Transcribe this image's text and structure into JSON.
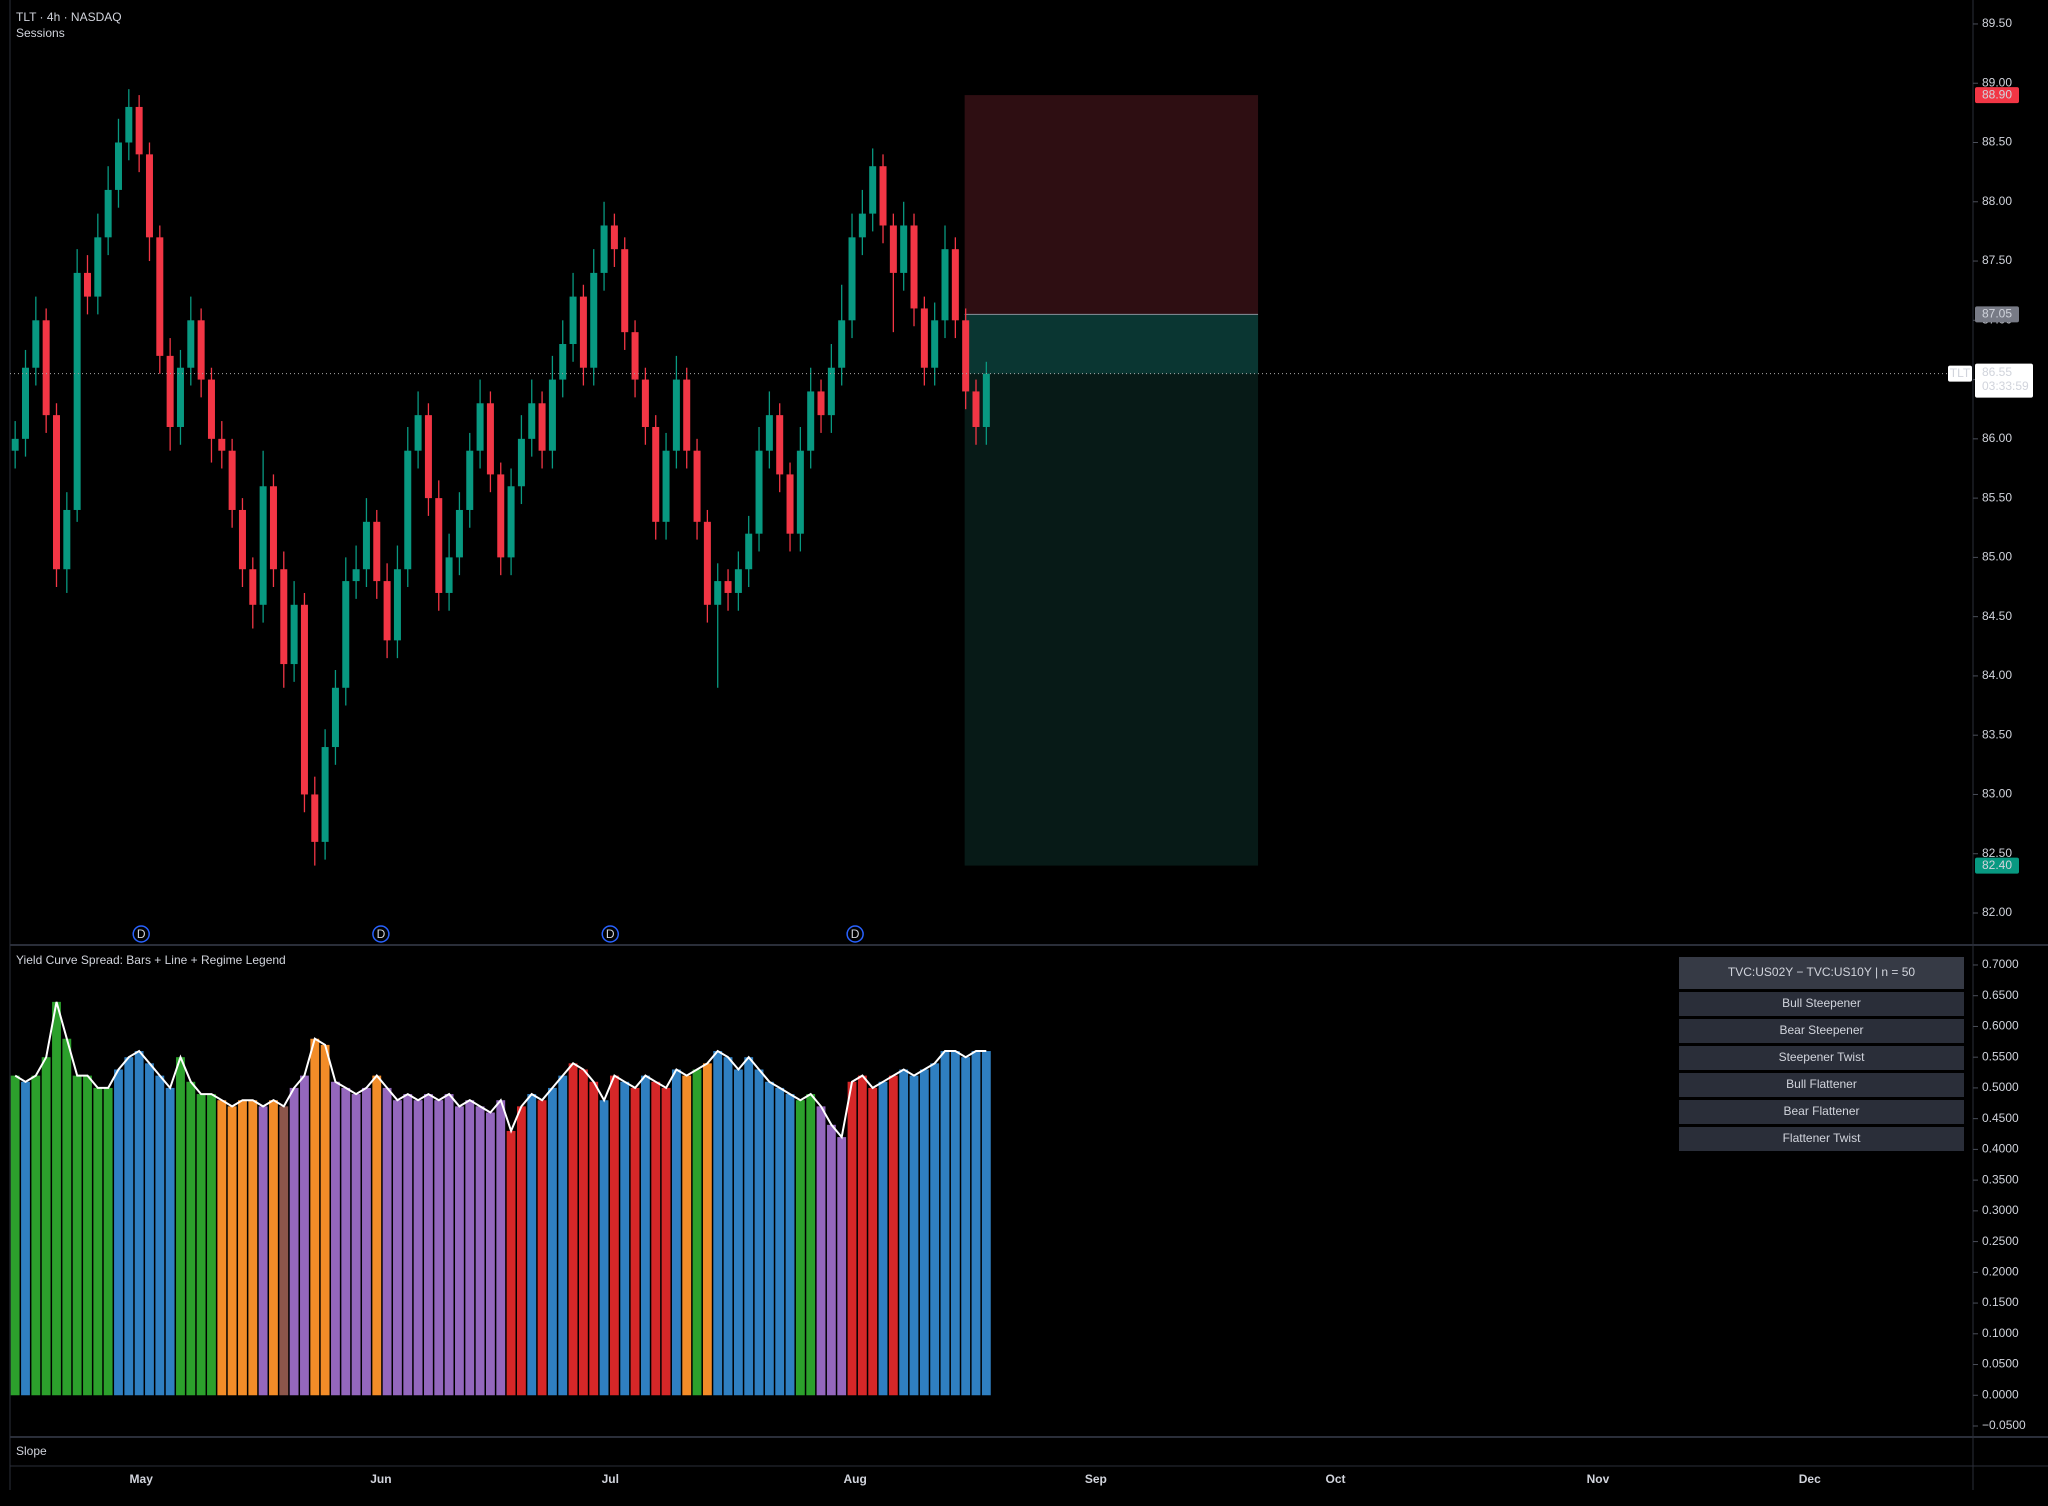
{
  "chart_data": [
    {
      "type": "candlestick",
      "title": "TLT · 4h · NASDAQ",
      "subtitle": "Sessions",
      "up_color": "#089981",
      "down_color": "#f23645",
      "candles": [
        [
          85.9,
          86.15,
          85.75,
          86.0
        ],
        [
          86.0,
          86.75,
          85.85,
          86.6
        ],
        [
          86.6,
          87.2,
          86.45,
          87.0
        ],
        [
          87.0,
          87.1,
          86.05,
          86.2
        ],
        [
          86.2,
          86.3,
          84.75,
          84.9
        ],
        [
          84.9,
          85.55,
          84.7,
          85.4
        ],
        [
          85.4,
          87.6,
          85.3,
          87.4
        ],
        [
          87.4,
          87.55,
          87.05,
          87.2
        ],
        [
          87.2,
          87.9,
          87.05,
          87.7
        ],
        [
          87.7,
          88.3,
          87.55,
          88.1
        ],
        [
          88.1,
          88.7,
          87.95,
          88.5
        ],
        [
          88.5,
          88.95,
          88.35,
          88.8
        ],
        [
          88.8,
          88.9,
          88.25,
          88.4
        ],
        [
          88.4,
          88.5,
          87.5,
          87.7
        ],
        [
          87.7,
          87.8,
          86.55,
          86.7
        ],
        [
          86.7,
          86.85,
          85.9,
          86.1
        ],
        [
          86.1,
          86.75,
          85.95,
          86.6
        ],
        [
          86.6,
          87.2,
          86.45,
          87.0
        ],
        [
          87.0,
          87.1,
          86.35,
          86.5
        ],
        [
          86.5,
          86.6,
          85.8,
          86.0
        ],
        [
          86.0,
          86.15,
          85.75,
          85.9
        ],
        [
          85.9,
          86.0,
          85.25,
          85.4
        ],
        [
          85.4,
          85.5,
          84.75,
          84.9
        ],
        [
          84.9,
          85.0,
          84.4,
          84.6
        ],
        [
          84.6,
          85.9,
          84.45,
          85.6
        ],
        [
          85.6,
          85.7,
          84.75,
          84.9
        ],
        [
          84.9,
          85.05,
          83.9,
          84.1
        ],
        [
          84.1,
          84.8,
          83.95,
          84.6
        ],
        [
          84.6,
          84.7,
          82.85,
          83.0
        ],
        [
          83.0,
          83.15,
          82.4,
          82.6
        ],
        [
          82.6,
          83.55,
          82.45,
          83.4
        ],
        [
          83.4,
          84.05,
          83.25,
          83.9
        ],
        [
          83.9,
          85.0,
          83.75,
          84.8
        ],
        [
          84.8,
          85.1,
          84.65,
          84.9
        ],
        [
          84.9,
          85.5,
          84.75,
          85.3
        ],
        [
          85.3,
          85.4,
          84.65,
          84.8
        ],
        [
          84.8,
          84.95,
          84.15,
          84.3
        ],
        [
          84.3,
          85.1,
          84.15,
          84.9
        ],
        [
          84.9,
          86.1,
          84.75,
          85.9
        ],
        [
          85.9,
          86.4,
          85.75,
          86.2
        ],
        [
          86.2,
          86.3,
          85.35,
          85.5
        ],
        [
          85.5,
          85.65,
          84.55,
          84.7
        ],
        [
          84.7,
          85.2,
          84.55,
          85.0
        ],
        [
          85.0,
          85.55,
          84.85,
          85.4
        ],
        [
          85.4,
          86.05,
          85.25,
          85.9
        ],
        [
          85.9,
          86.5,
          85.75,
          86.3
        ],
        [
          86.3,
          86.4,
          85.55,
          85.7
        ],
        [
          85.7,
          85.8,
          84.85,
          85.0
        ],
        [
          85.0,
          85.75,
          84.85,
          85.6
        ],
        [
          85.6,
          86.2,
          85.45,
          86.0
        ],
        [
          86.0,
          86.5,
          85.85,
          86.3
        ],
        [
          86.3,
          86.4,
          85.75,
          85.9
        ],
        [
          85.9,
          86.7,
          85.75,
          86.5
        ],
        [
          86.5,
          87.0,
          86.35,
          86.8
        ],
        [
          86.8,
          87.4,
          86.65,
          87.2
        ],
        [
          87.2,
          87.3,
          86.45,
          86.6
        ],
        [
          86.6,
          87.6,
          86.45,
          87.4
        ],
        [
          87.4,
          88.0,
          87.25,
          87.8
        ],
        [
          87.8,
          87.9,
          87.45,
          87.6
        ],
        [
          87.6,
          87.7,
          86.75,
          86.9
        ],
        [
          86.9,
          87.0,
          86.35,
          86.5
        ],
        [
          86.5,
          86.6,
          85.95,
          86.1
        ],
        [
          86.1,
          86.2,
          85.15,
          85.3
        ],
        [
          85.3,
          86.05,
          85.15,
          85.9
        ],
        [
          85.9,
          86.7,
          85.75,
          86.5
        ],
        [
          86.5,
          86.6,
          85.75,
          85.9
        ],
        [
          85.9,
          86.0,
          85.15,
          85.3
        ],
        [
          85.3,
          85.4,
          84.45,
          84.6
        ],
        [
          84.6,
          84.95,
          83.9,
          84.8
        ],
        [
          84.8,
          84.9,
          84.55,
          84.7
        ],
        [
          84.7,
          85.05,
          84.55,
          84.9
        ],
        [
          84.9,
          85.35,
          84.75,
          85.2
        ],
        [
          85.2,
          86.1,
          85.05,
          85.9
        ],
        [
          85.9,
          86.4,
          85.75,
          86.2
        ],
        [
          86.2,
          86.3,
          85.55,
          85.7
        ],
        [
          85.7,
          85.8,
          85.05,
          85.2
        ],
        [
          85.2,
          86.1,
          85.05,
          85.9
        ],
        [
          85.9,
          86.6,
          85.75,
          86.4
        ],
        [
          86.4,
          86.5,
          86.05,
          86.2
        ],
        [
          86.2,
          86.8,
          86.05,
          86.6
        ],
        [
          86.6,
          87.3,
          86.45,
          87.0
        ],
        [
          87.0,
          87.9,
          86.85,
          87.7
        ],
        [
          87.7,
          88.1,
          87.55,
          87.9
        ],
        [
          87.9,
          88.45,
          87.75,
          88.3
        ],
        [
          88.3,
          88.4,
          87.65,
          87.8
        ],
        [
          87.8,
          87.9,
          86.9,
          87.4
        ],
        [
          87.4,
          88.0,
          87.25,
          87.8
        ],
        [
          87.8,
          87.9,
          86.95,
          87.1
        ],
        [
          87.1,
          87.2,
          86.45,
          86.6
        ],
        [
          86.6,
          87.15,
          86.45,
          87.0
        ],
        [
          87.0,
          87.8,
          86.85,
          87.6
        ],
        [
          87.6,
          87.7,
          86.85,
          87.0
        ],
        [
          87.0,
          87.1,
          86.25,
          86.4
        ],
        [
          86.4,
          86.5,
          85.95,
          86.1
        ],
        [
          86.1,
          86.65,
          85.95,
          86.55
        ]
      ],
      "xlim": [
        -0.5,
        189.5
      ],
      "ylim": [
        81.73,
        89.66
      ],
      "yticks": [
        {
          "value": 82,
          "label": "82.00"
        },
        {
          "value": 82.5,
          "label": "82.50"
        },
        {
          "value": 83,
          "label": "83.00"
        },
        {
          "value": 83.5,
          "label": "83.50"
        },
        {
          "value": 84,
          "label": "84.00"
        },
        {
          "value": 84.5,
          "label": "84.50"
        },
        {
          "value": 85,
          "label": "85.00"
        },
        {
          "value": 85.5,
          "label": "85.50"
        },
        {
          "value": 86,
          "label": "86.00"
        },
        {
          "value": 86.5,
          "label": "86.50"
        },
        {
          "value": 87,
          "label": "87.00"
        },
        {
          "value": 87.5,
          "label": "87.50"
        },
        {
          "value": 88,
          "label": "88.00"
        },
        {
          "value": 88.5,
          "label": "88.50"
        },
        {
          "value": 89,
          "label": "89.00"
        },
        {
          "value": 89.5,
          "label": "89.50"
        }
      ],
      "last_price": 86.55,
      "symbol": "TLT",
      "countdown": "03:33:59",
      "position": {
        "x": [
          91.9,
          120.3
        ],
        "stop": {
          "value": 88.9,
          "label": "88.90"
        },
        "entry": 87.05,
        "target": {
          "value": 82.4,
          "label": "82.40"
        }
      },
      "dividends": [
        12.2,
        35.4,
        57.6,
        81.3
      ],
      "dividend_label": "D"
    },
    {
      "type": "bar",
      "title": "Yield Curve Spread: Bars + Line + Regime Legend",
      "values": [
        0.52,
        0.51,
        0.52,
        0.55,
        0.64,
        0.58,
        0.52,
        0.52,
        0.5,
        0.5,
        0.53,
        0.55,
        0.56,
        0.54,
        0.52,
        0.5,
        0.55,
        0.51,
        0.49,
        0.49,
        0.48,
        0.47,
        0.48,
        0.48,
        0.47,
        0.48,
        0.47,
        0.5,
        0.52,
        0.58,
        0.57,
        0.51,
        0.5,
        0.49,
        0.5,
        0.52,
        0.5,
        0.48,
        0.49,
        0.48,
        0.49,
        0.48,
        0.49,
        0.47,
        0.48,
        0.47,
        0.46,
        0.48,
        0.43,
        0.47,
        0.49,
        0.48,
        0.5,
        0.52,
        0.54,
        0.53,
        0.51,
        0.48,
        0.52,
        0.51,
        0.5,
        0.52,
        0.51,
        0.5,
        0.53,
        0.52,
        0.53,
        0.54,
        0.56,
        0.55,
        0.53,
        0.55,
        0.53,
        0.51,
        0.5,
        0.49,
        0.48,
        0.49,
        0.47,
        0.44,
        0.42,
        0.51,
        0.52,
        0.5,
        0.51,
        0.52,
        0.53,
        0.52,
        0.53,
        0.54,
        0.56,
        0.56,
        0.55,
        0.56,
        0.56
      ],
      "regimes": [
        2,
        0,
        2,
        2,
        2,
        2,
        2,
        2,
        2,
        2,
        0,
        0,
        0,
        0,
        0,
        0,
        2,
        2,
        2,
        2,
        1,
        1,
        1,
        1,
        4,
        1,
        5,
        4,
        4,
        1,
        1,
        4,
        4,
        4,
        4,
        1,
        4,
        4,
        4,
        4,
        4,
        4,
        4,
        4,
        4,
        4,
        4,
        4,
        3,
        3,
        0,
        3,
        0,
        0,
        3,
        3,
        3,
        0,
        3,
        0,
        3,
        0,
        3,
        3,
        0,
        1,
        2,
        1,
        0,
        0,
        0,
        0,
        0,
        0,
        0,
        0,
        2,
        2,
        4,
        4,
        4,
        3,
        3,
        3,
        0,
        3,
        0,
        0,
        0,
        0,
        0,
        0,
        0,
        0,
        0
      ],
      "line_color": "#ffffff",
      "legend": {
        "title": "TVC:US02Y − TVC:US10Y | n = 50",
        "items": [
          {
            "name": "Bull Steepener",
            "color": "#2f7fc1"
          },
          {
            "name": "Bear Steepener",
            "color": "#f28c28"
          },
          {
            "name": "Steepener Twist",
            "color": "#2ca02c"
          },
          {
            "name": "Bull Flattener",
            "color": "#d62728"
          },
          {
            "name": "Bear Flattener",
            "color": "#9467bd"
          },
          {
            "name": "Flattener Twist",
            "color": "#8c564b"
          }
        ]
      },
      "xlim": [
        -0.5,
        189.5
      ],
      "ylim": [
        -0.0679,
        0.7325
      ],
      "yticks": [
        {
          "value": 0.7,
          "label": "0.7000"
        },
        {
          "value": 0.65,
          "label": "0.6500"
        },
        {
          "value": 0.6,
          "label": "0.6000"
        },
        {
          "value": 0.55,
          "label": "0.5500"
        },
        {
          "value": 0.5,
          "label": "0.5000"
        },
        {
          "value": 0.45,
          "label": "0.4500"
        },
        {
          "value": 0.4,
          "label": "0.4000"
        },
        {
          "value": 0.35,
          "label": "0.3500"
        },
        {
          "value": 0.3,
          "label": "0.3000"
        },
        {
          "value": 0.25,
          "label": "0.2500"
        },
        {
          "value": 0.2,
          "label": "0.2000"
        },
        {
          "value": 0.15,
          "label": "0.1500"
        },
        {
          "value": 0.1,
          "label": "0.1000"
        },
        {
          "value": 0.05,
          "label": "0.0500"
        },
        {
          "value": 0,
          "label": "0.0000"
        },
        {
          "value": -0.05,
          "label": "−0.0500"
        }
      ]
    }
  ],
  "slope_pane": {
    "title": "Slope"
  },
  "x_axis": {
    "ticks": [
      {
        "value": 12.2,
        "label": "May"
      },
      {
        "value": 35.4,
        "label": "Jun"
      },
      {
        "value": 57.6,
        "label": "Jul"
      },
      {
        "value": 81.3,
        "label": "Aug"
      },
      {
        "value": 104.6,
        "label": "Sep"
      },
      {
        "value": 127.8,
        "label": "Oct"
      },
      {
        "value": 153.2,
        "label": "Nov"
      },
      {
        "value": 173.7,
        "label": "Dec"
      }
    ]
  }
}
